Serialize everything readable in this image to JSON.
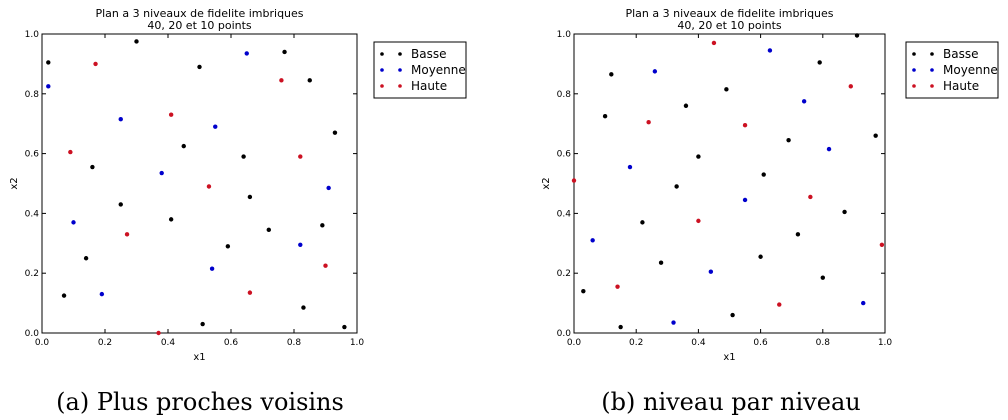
{
  "chart_data": [
    {
      "type": "scatter",
      "title": "Plan a 3 niveaux de fidelite imbriques",
      "subtitle": "40, 20 et 10 points",
      "xlabel": "x1",
      "ylabel": "x2",
      "xlim": [
        0.0,
        1.0
      ],
      "ylim": [
        0.0,
        1.0
      ],
      "xticks": [
        "0.0",
        "0.2",
        "0.4",
        "0.6",
        "0.8",
        "1.0"
      ],
      "yticks": [
        "0.0",
        "0.2",
        "0.4",
        "0.6",
        "0.8",
        "1.0"
      ],
      "legend_position": "outside-right",
      "grid": false,
      "caption": "(a) Plus proches voisins",
      "series": [
        {
          "name": "Basse",
          "color": "#000000",
          "points": [
            [
              0.02,
              0.905
            ],
            [
              0.3,
              0.975
            ],
            [
              0.5,
              0.89
            ],
            [
              0.77,
              0.94
            ],
            [
              0.85,
              0.845
            ],
            [
              0.45,
              0.625
            ],
            [
              0.16,
              0.555
            ],
            [
              0.64,
              0.59
            ],
            [
              0.93,
              0.67
            ],
            [
              0.66,
              0.455
            ],
            [
              0.25,
              0.43
            ],
            [
              0.41,
              0.38
            ],
            [
              0.72,
              0.345
            ],
            [
              0.89,
              0.36
            ],
            [
              0.59,
              0.29
            ],
            [
              0.14,
              0.25
            ],
            [
              0.07,
              0.125
            ],
            [
              0.51,
              0.03
            ],
            [
              0.83,
              0.085
            ],
            [
              0.96,
              0.02
            ]
          ]
        },
        {
          "name": "Moyenne",
          "color": "#0000cc",
          "points": [
            [
              0.02,
              0.825
            ],
            [
              0.65,
              0.935
            ],
            [
              0.25,
              0.715
            ],
            [
              0.55,
              0.69
            ],
            [
              0.38,
              0.535
            ],
            [
              0.1,
              0.37
            ],
            [
              0.91,
              0.485
            ],
            [
              0.82,
              0.295
            ],
            [
              0.54,
              0.215
            ],
            [
              0.19,
              0.13
            ]
          ]
        },
        {
          "name": "Haute",
          "color": "#cc1122",
          "points": [
            [
              0.17,
              0.9
            ],
            [
              0.76,
              0.845
            ],
            [
              0.41,
              0.73
            ],
            [
              0.09,
              0.605
            ],
            [
              0.82,
              0.59
            ],
            [
              0.53,
              0.49
            ],
            [
              0.27,
              0.33
            ],
            [
              0.9,
              0.225
            ],
            [
              0.66,
              0.135
            ],
            [
              0.37,
              0.0
            ]
          ]
        }
      ]
    },
    {
      "type": "scatter",
      "title": "Plan a 3 niveaux de fidelite imbriques",
      "subtitle": "40, 20 et 10 points",
      "xlabel": "x1",
      "ylabel": "x2",
      "xlim": [
        0.0,
        1.0
      ],
      "ylim": [
        0.0,
        1.0
      ],
      "xticks": [
        "0.0",
        "0.2",
        "0.4",
        "0.6",
        "0.8",
        "1.0"
      ],
      "yticks": [
        "0.0",
        "0.2",
        "0.4",
        "0.6",
        "0.8",
        "1.0"
      ],
      "legend_position": "outside-right",
      "grid": false,
      "caption": "(b) niveau par niveau",
      "series": [
        {
          "name": "Basse",
          "color": "#000000",
          "points": [
            [
              0.91,
              0.995
            ],
            [
              0.12,
              0.865
            ],
            [
              0.79,
              0.905
            ],
            [
              0.49,
              0.815
            ],
            [
              0.1,
              0.725
            ],
            [
              0.36,
              0.76
            ],
            [
              0.69,
              0.645
            ],
            [
              0.97,
              0.66
            ],
            [
              0.4,
              0.59
            ],
            [
              0.61,
              0.53
            ],
            [
              0.33,
              0.49
            ],
            [
              0.22,
              0.37
            ],
            [
              0.87,
              0.405
            ],
            [
              0.72,
              0.33
            ],
            [
              0.28,
              0.235
            ],
            [
              0.6,
              0.255
            ],
            [
              0.8,
              0.185
            ],
            [
              0.03,
              0.14
            ],
            [
              0.51,
              0.06
            ],
            [
              0.15,
              0.02
            ]
          ]
        },
        {
          "name": "Moyenne",
          "color": "#0000cc",
          "points": [
            [
              0.63,
              0.945
            ],
            [
              0.26,
              0.875
            ],
            [
              0.74,
              0.775
            ],
            [
              0.82,
              0.615
            ],
            [
              0.18,
              0.555
            ],
            [
              0.55,
              0.445
            ],
            [
              0.06,
              0.31
            ],
            [
              0.44,
              0.205
            ],
            [
              0.93,
              0.1
            ],
            [
              0.32,
              0.035
            ]
          ]
        },
        {
          "name": "Haute",
          "color": "#cc1122",
          "points": [
            [
              0.45,
              0.97
            ],
            [
              0.89,
              0.825
            ],
            [
              0.24,
              0.705
            ],
            [
              0.55,
              0.695
            ],
            [
              0.0,
              0.51
            ],
            [
              0.76,
              0.455
            ],
            [
              0.4,
              0.375
            ],
            [
              0.99,
              0.295
            ],
            [
              0.14,
              0.155
            ],
            [
              0.66,
              0.095
            ]
          ]
        }
      ]
    }
  ]
}
